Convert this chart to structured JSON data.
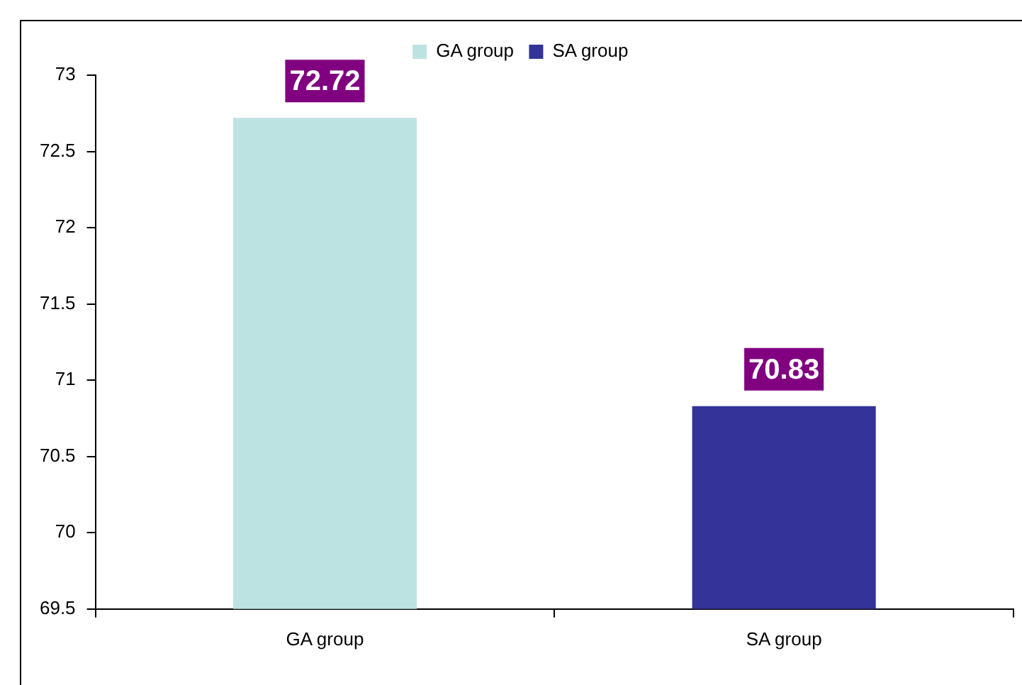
{
  "chart_data": {
    "type": "bar",
    "categories": [
      "GA group",
      "SA group"
    ],
    "series": [
      {
        "name": "GA group",
        "color": "#bde2e2",
        "values": [
          72.72,
          null
        ]
      },
      {
        "name": "SA group",
        "color": "#333399",
        "values": [
          null,
          70.83
        ]
      }
    ],
    "ylim": [
      69.5,
      73
    ],
    "yticks": [
      69.5,
      70,
      70.5,
      71,
      71.5,
      72,
      72.5,
      73
    ],
    "grid": false,
    "legend": "top",
    "data_labels": true
  }
}
